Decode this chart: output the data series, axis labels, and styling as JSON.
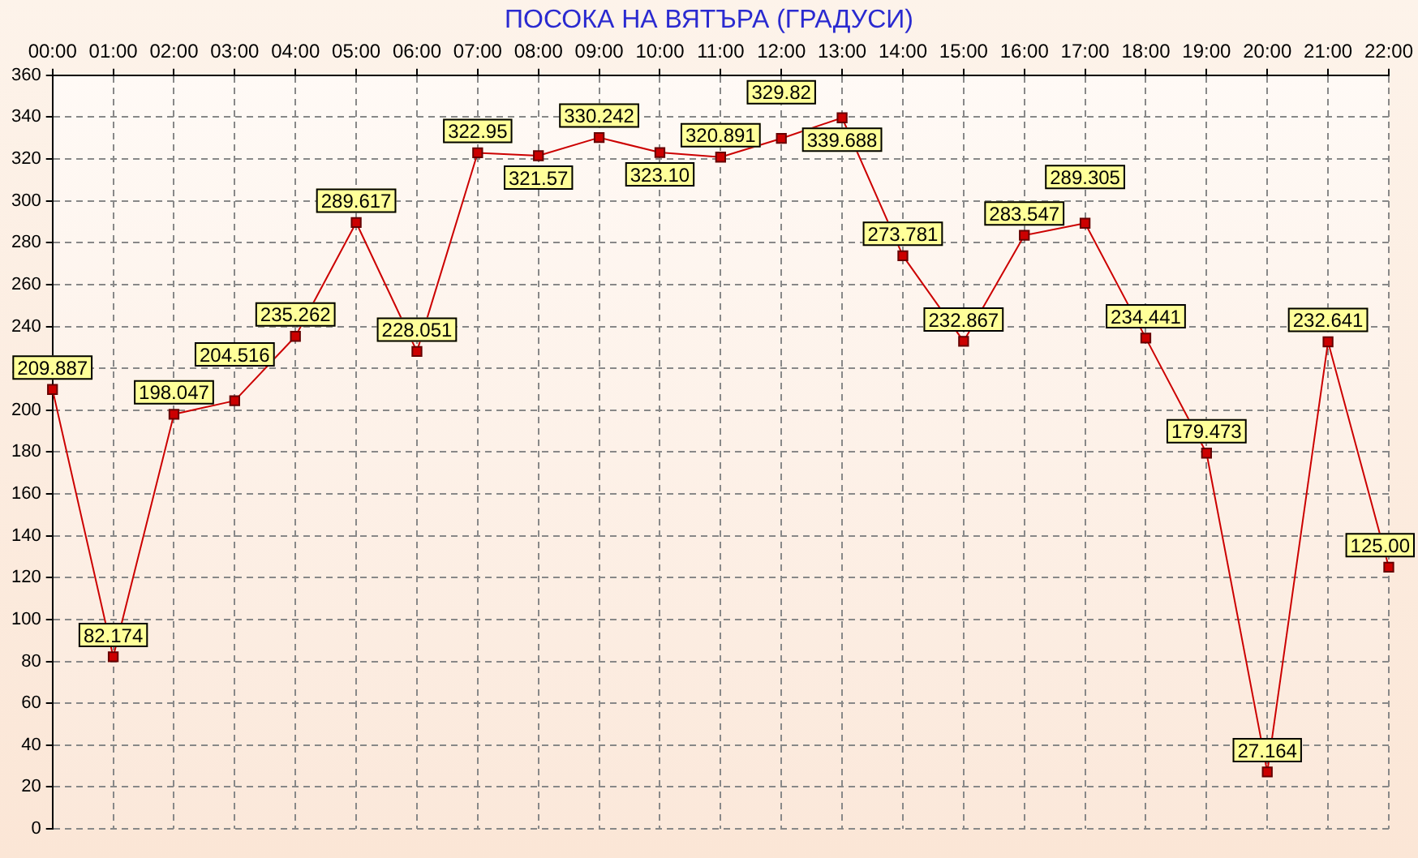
{
  "chart_data": {
    "type": "line",
    "title": "ПОСОКА НА ВЯТЪРА    (ГРАДУСИ)",
    "categories": [
      "00:00",
      "01:00",
      "02:00",
      "03:00",
      "04:00",
      "05:00",
      "06:00",
      "07:00",
      "08:00",
      "09:00",
      "10:00",
      "11:00",
      "12:00",
      "13:00",
      "14:00",
      "15:00",
      "16:00",
      "17:00",
      "18:00",
      "19:00",
      "20:00",
      "21:00",
      "22:00"
    ],
    "series": [
      {
        "color": "#cc0000",
        "values": [
          209.887,
          82.174,
          198.047,
          204.516,
          235.262,
          289.617,
          228.051,
          322.95,
          321.57,
          330.242,
          323.1,
          320.891,
          329.82,
          339.688,
          273.781,
          232.867,
          283.547,
          289.305,
          234.441,
          179.473,
          27.164,
          232.641,
          125.0
        ],
        "value_labels": [
          "209.887",
          "82.174",
          "198.047",
          "204.516",
          "235.262",
          "289.617",
          "228.051",
          "322.95",
          "321.57",
          "330.242",
          "323.10",
          "320.891",
          "329.82",
          "339.688",
          "273.781",
          "232.867",
          "283.547",
          "289.305",
          "234.441",
          "179.473",
          "27.164",
          "232.641",
          "125.00"
        ]
      }
    ],
    "ylim": [
      0,
      360
    ],
    "yticks": [
      0,
      20,
      40,
      60,
      80,
      100,
      120,
      140,
      160,
      180,
      200,
      220,
      240,
      260,
      280,
      300,
      320,
      340,
      360
    ],
    "grid": true,
    "legend": false,
    "marker": "square",
    "line_style": "solid"
  }
}
